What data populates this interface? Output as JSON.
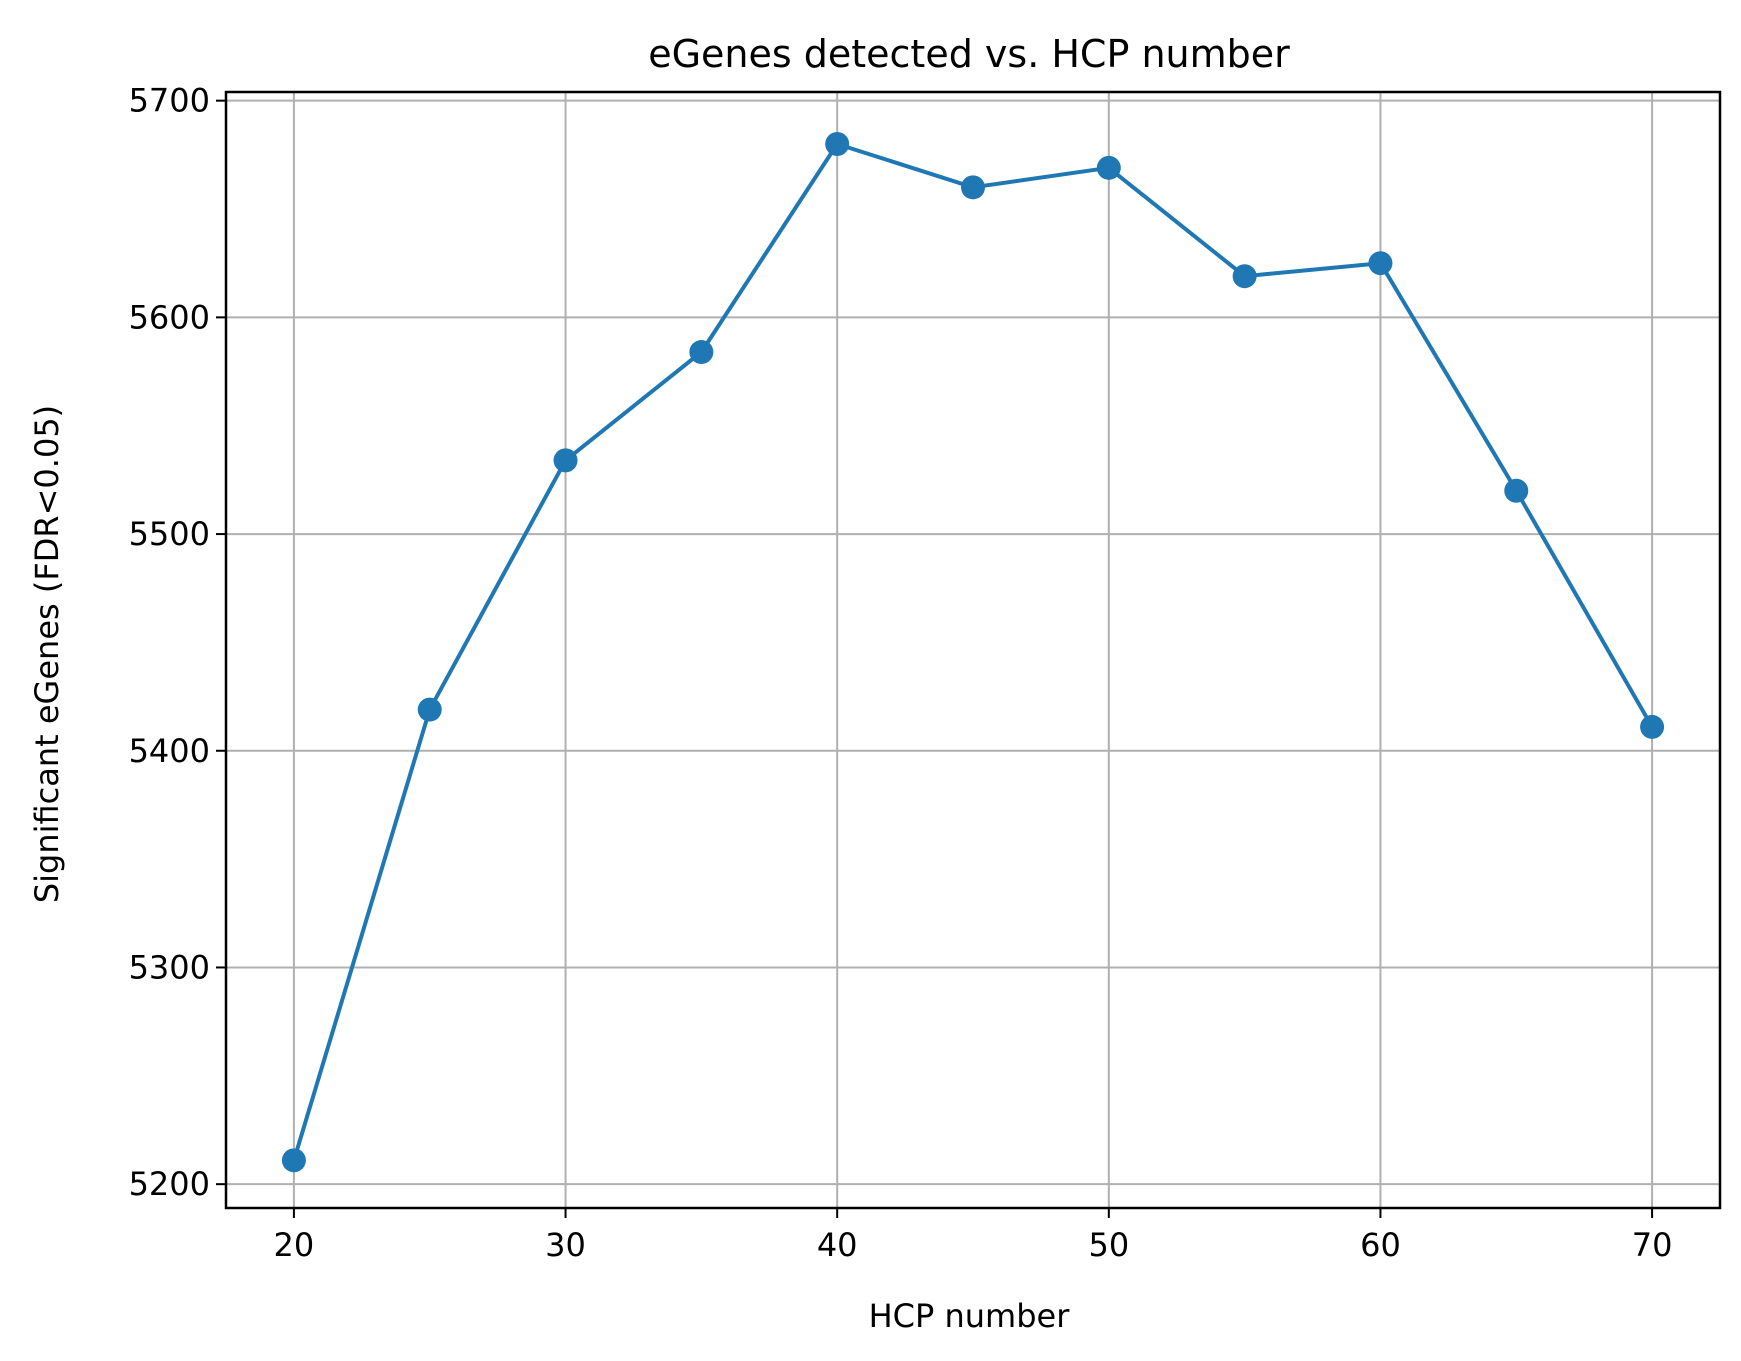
{
  "chart_data": {
    "type": "line",
    "title": "eGenes detected vs. HCP number",
    "xlabel": "HCP number",
    "ylabel": "Significant eGenes (FDR<0.05)",
    "xlim": [
      17.5,
      72.5
    ],
    "ylim": [
      5189,
      5704
    ],
    "xticks": [
      20,
      30,
      40,
      50,
      60,
      70
    ],
    "yticks": [
      5200,
      5300,
      5400,
      5500,
      5600,
      5700
    ],
    "grid": true,
    "legend": "none",
    "color": "#1f77b4",
    "marker": "circle",
    "series": [
      {
        "x": [
          20,
          25,
          30,
          35,
          40,
          45,
          50,
          55,
          60,
          65,
          70
        ],
        "y": [
          5211,
          5419,
          5534,
          5584,
          5680,
          5660,
          5669,
          5619,
          5625,
          5520,
          5411
        ]
      }
    ]
  }
}
